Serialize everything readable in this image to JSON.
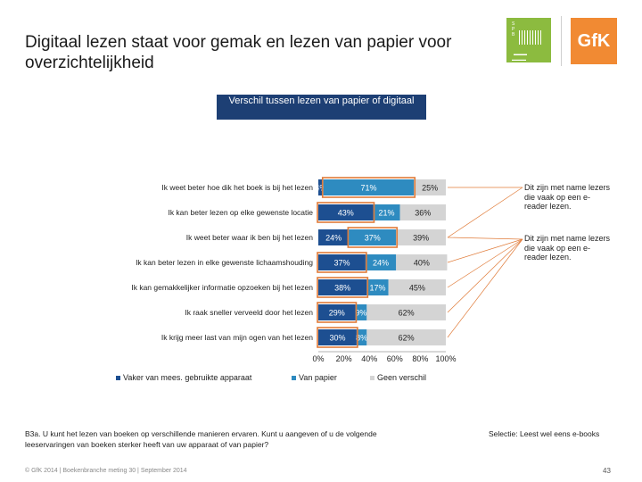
{
  "title": "Digitaal lezen staat voor gemak en lezen van papier voor overzichtelijkheid",
  "logo_gfk": "GfK",
  "banner": "Verschil tussen lezen van papier of digitaal",
  "chart_data": {
    "type": "bar",
    "stacked": true,
    "orientation": "horizontal",
    "categories": [
      "Ik weet beter hoe dik het boek is bij het lezen",
      "Ik kan beter lezen op elke gewenste locatie",
      "Ik weet beter waar ik ben bij het lezen",
      "Ik kan beter lezen in elke gewenste lichaamshouding",
      "Ik kan gemakkelijker informatie opzoeken bij het lezen",
      "Ik raak sneller verveeld door het lezen",
      "Ik krijg meer last van mijn ogen van het lezen"
    ],
    "series": [
      {
        "name": "Vaker van mees. gebruikte apparaat",
        "color": "#1d4f91",
        "values": [
          4,
          43,
          24,
          37,
          38,
          29,
          30
        ],
        "labels": [
          "4%",
          "43%",
          "24%",
          "37%",
          "38%",
          "29%",
          "30%"
        ]
      },
      {
        "name": "Van papier",
        "color": "#2e8bc0",
        "values": [
          71,
          21,
          37,
          24,
          17,
          9,
          8
        ],
        "labels": [
          "71%",
          "21%",
          "37%",
          "24%",
          "17%",
          "9%",
          "8%"
        ]
      },
      {
        "name": "Geen verschil",
        "color": "#d4d4d4",
        "values": [
          25,
          36,
          39,
          40,
          45,
          62,
          62
        ],
        "labels": [
          "25%",
          "36%",
          "39%",
          "40%",
          "45%",
          "62%",
          "62%"
        ]
      }
    ],
    "xlim": [
      0,
      100
    ],
    "ticks": [
      "0%",
      "20%",
      "40%",
      "60%",
      "80%",
      "100%"
    ],
    "legend_position": "bottom"
  },
  "notes": [
    "Dit zijn met name lezers die vaak op een e-reader lezen.",
    "Dit zijn met name lezers die vaak op een e-reader lezen."
  ],
  "footnote": "B3a. U kunt het lezen van boeken op verschillende manieren ervaren. Kunt u aangeven of u de volgende leeservaringen van boeken sterker heeft van uw apparaat of van papier?",
  "selectie": "Selectie: Leest wel eens e-books",
  "footer": "© GfK 2014 | Boekenbranche meting 30 | September 2014",
  "page_number": "43"
}
